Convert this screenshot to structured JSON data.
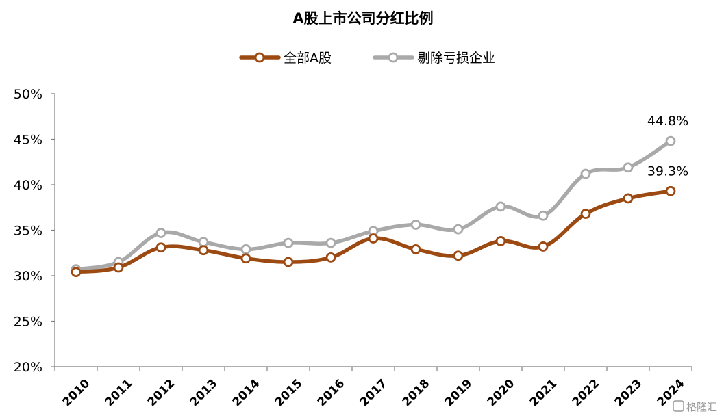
{
  "chart_data": {
    "type": "line",
    "title": "A股上市公司分红比例",
    "xlabel": "",
    "ylabel": "",
    "ylim": [
      20,
      50
    ],
    "ytick_step": 5,
    "y_format": "percent",
    "categories": [
      "2010",
      "2011",
      "2012",
      "2013",
      "2014",
      "2015",
      "2016",
      "2017",
      "2018",
      "2019",
      "2020",
      "2021",
      "2022",
      "2023",
      "2024"
    ],
    "legend_position": "top-center",
    "grid": false,
    "series": [
      {
        "name": "全部A股",
        "color": "#9c4a12",
        "values": [
          30.4,
          30.9,
          33.1,
          32.8,
          31.9,
          31.5,
          32.0,
          34.1,
          32.9,
          32.2,
          33.8,
          33.2,
          36.8,
          38.5,
          39.3
        ]
      },
      {
        "name": "剔除亏损企业",
        "color": "#a9a9a9",
        "values": [
          30.7,
          31.5,
          34.7,
          33.7,
          32.9,
          33.6,
          33.6,
          34.9,
          35.6,
          35.1,
          37.6,
          36.6,
          41.2,
          41.9,
          44.8
        ]
      }
    ],
    "annotations": [
      {
        "series": 1,
        "index": 14,
        "text": "44.8%"
      },
      {
        "series": 0,
        "index": 14,
        "text": "39.3%"
      }
    ]
  },
  "watermark": {
    "text": "格隆汇"
  }
}
